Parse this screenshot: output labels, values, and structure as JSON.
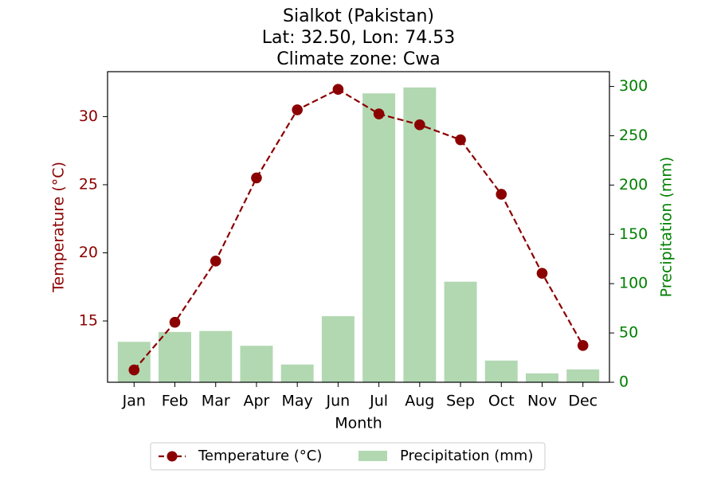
{
  "chart_data": {
    "type": "bar+line",
    "title_lines": [
      "Sialkot (Pakistan)",
      "Lat: 32.50, Lon: 74.53",
      "Climate zone: Cwa"
    ],
    "categories": [
      "Jan",
      "Feb",
      "Mar",
      "Apr",
      "May",
      "Jun",
      "Jul",
      "Aug",
      "Sep",
      "Oct",
      "Nov",
      "Dec"
    ],
    "xlabel": "Month",
    "temperature": {
      "name": "Temperature (°C)",
      "axis_label": "Temperature (°C)",
      "values": [
        11.4,
        14.9,
        19.4,
        25.5,
        30.5,
        32.0,
        30.2,
        29.4,
        28.3,
        24.3,
        18.5,
        13.2
      ],
      "ylim": [
        10.5,
        33.3
      ],
      "ticks": [
        15,
        20,
        25,
        30
      ],
      "color": "#8b0000",
      "style": "dashed line with circle markers"
    },
    "precipitation": {
      "name": "Precipitation (mm)",
      "axis_label": "Precipitation (mm)",
      "values": [
        41,
        51,
        52,
        37,
        18,
        67,
        293,
        299,
        102,
        22,
        9,
        13
      ],
      "ylim": [
        0,
        315
      ],
      "ticks": [
        0,
        50,
        100,
        150,
        200,
        250,
        300
      ],
      "color": "#b2d8b2",
      "axis_color": "#008000",
      "style": "bars"
    },
    "legend": {
      "placement": "bottom-center, below the plot",
      "entries": [
        "Temperature (°C)",
        "Precipitation (mm)"
      ]
    },
    "grid": false
  }
}
